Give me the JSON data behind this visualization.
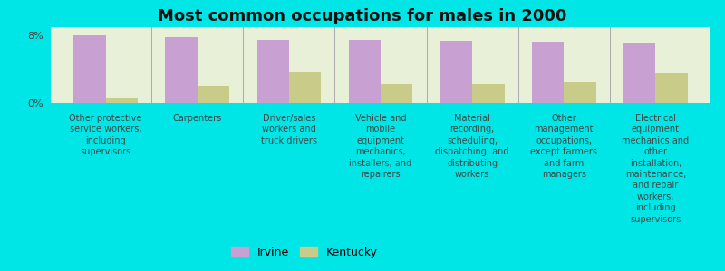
{
  "title": "Most common occupations for males in 2000",
  "categories": [
    "Other protective\nservice workers,\nincluding\nsupervisors",
    "Carpenters",
    "Driver/sales\nworkers and\ntruck drivers",
    "Vehicle and\nmobile\nequipment\nmechanics,\ninstallers, and\nrepairers",
    "Material\nrecording,\nscheduling,\ndispatching, and\ndistributing\nworkers",
    "Other\nmanagement\noccupations,\nexcept farmers\nand farm\nmanagers",
    "Electrical\nequipment\nmechanics and\nother\ninstallation,\nmaintenance,\nand repair\nworkers,\nincluding\nsupervisors"
  ],
  "irvine_values": [
    8.0,
    7.8,
    7.5,
    7.5,
    7.4,
    7.3,
    7.1
  ],
  "kentucky_values": [
    0.5,
    2.0,
    3.6,
    2.2,
    2.2,
    2.5,
    3.5
  ],
  "irvine_color": "#c8a0d2",
  "kentucky_color": "#c8cc88",
  "background_color": "#00e5e5",
  "plot_bg_color": "#e8f0d8",
  "ylim": [
    0,
    9
  ],
  "ytick_labels": [
    "0%",
    "8%"
  ],
  "bar_width": 0.35,
  "legend_labels": [
    "Irvine",
    "Kentucky"
  ],
  "title_fontsize": 13,
  "label_fontsize": 7.0
}
